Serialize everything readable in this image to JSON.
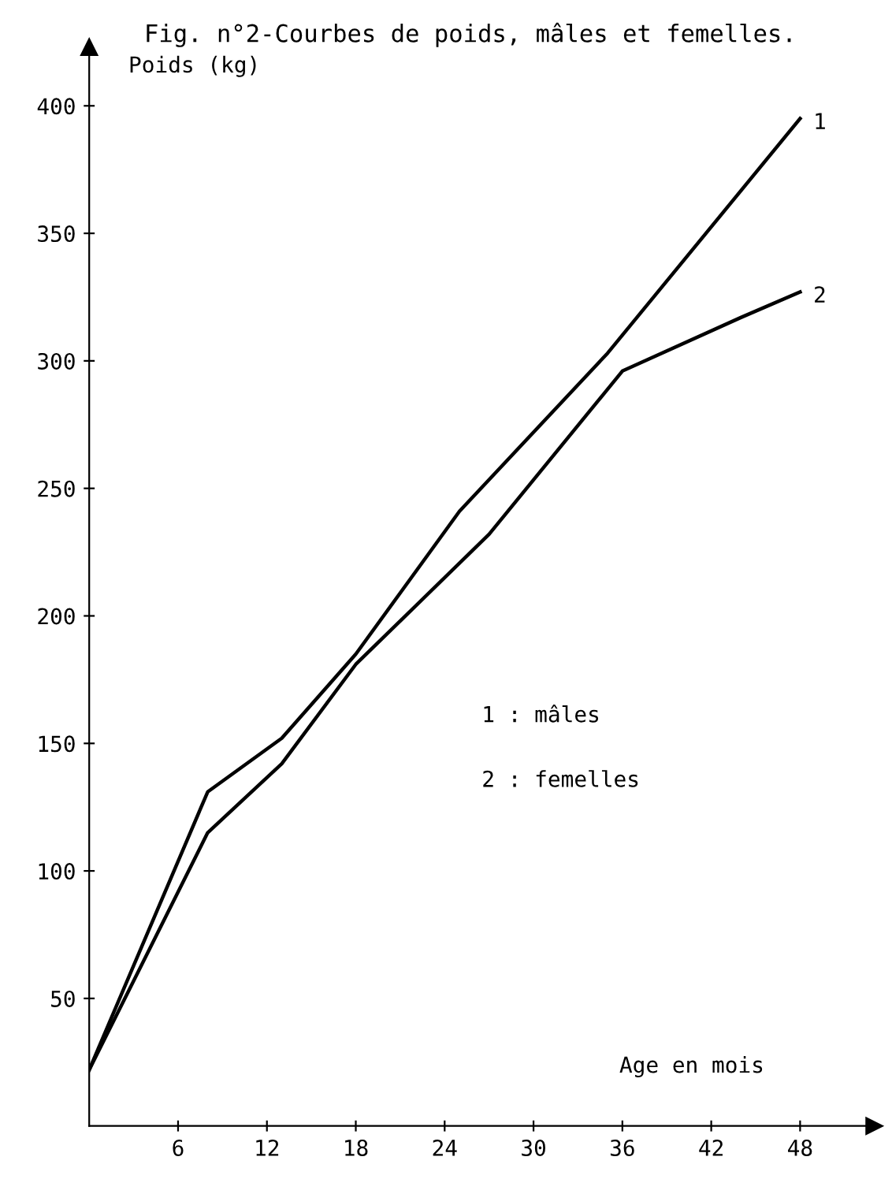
{
  "chart_data": {
    "type": "line",
    "title": "Fig. n°2-Courbes de poids, mâles et femelles.",
    "xlabel": "Age en mois",
    "ylabel": "Poids (kg)",
    "annotations": [
      "1 : mâles",
      "2 : femelles"
    ],
    "xlim": [
      0,
      53
    ],
    "ylim": [
      0,
      423
    ],
    "xticks": [
      6,
      12,
      18,
      24,
      30,
      36,
      42,
      48
    ],
    "yticks": [
      50,
      100,
      150,
      200,
      250,
      300,
      350,
      400
    ],
    "grid": false,
    "legend": false,
    "marker": "none",
    "line_style": "solid",
    "series": [
      {
        "name": "1",
        "color": "#000000",
        "x": [
          0,
          8,
          13,
          18,
          25,
          35,
          48
        ],
        "values": [
          22,
          131,
          152,
          185,
          241,
          303,
          395
        ]
      },
      {
        "name": "2",
        "color": "#000000",
        "x": [
          0,
          8,
          13,
          18,
          27,
          36,
          44,
          48
        ],
        "values": [
          22,
          115,
          142,
          181,
          232,
          296,
          317,
          327
        ]
      }
    ]
  }
}
